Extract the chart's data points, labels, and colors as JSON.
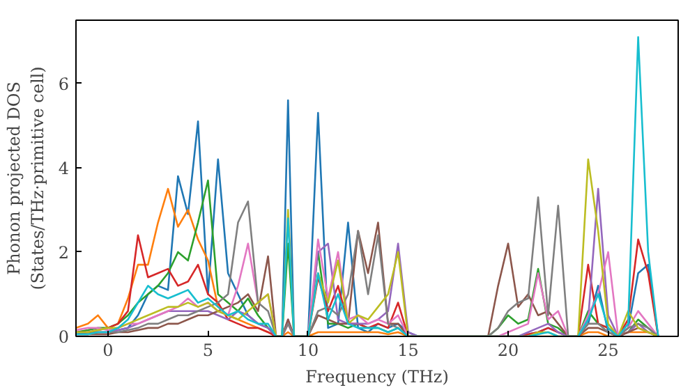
{
  "chart_data": {
    "type": "line",
    "xlabel": "Frequency (THz)",
    "ylabel": "Phonon projected DOS\n(States/THz·primitive cell)",
    "xlim": [
      -1.6,
      28.5
    ],
    "ylim": [
      0,
      7.5
    ],
    "xticks": [
      0,
      5,
      10,
      15,
      20,
      25
    ],
    "yticks": [
      0,
      2,
      4,
      6
    ],
    "grid": false,
    "marker": "none",
    "line_style": "solid",
    "x": [
      -1.6,
      -1.0,
      -0.5,
      0,
      0.5,
      1.0,
      1.5,
      2.0,
      2.5,
      3.0,
      3.5,
      4.0,
      4.5,
      5.0,
      5.5,
      6.0,
      6.5,
      7.0,
      7.5,
      8.0,
      8.4,
      8.7,
      9.0,
      9.3,
      9.6,
      10.0,
      10.5,
      11.0,
      11.5,
      12.0,
      12.5,
      13.0,
      13.5,
      14.0,
      14.5,
      15.0,
      15.5,
      19.0,
      19.5,
      20.0,
      20.5,
      21.0,
      21.5,
      22.0,
      22.5,
      23.0,
      23.5,
      24.0,
      24.5,
      25.0,
      25.5,
      26.0,
      26.5,
      27.0,
      27.5
    ],
    "series": [
      {
        "color": "#1f77b4",
        "values": [
          0.05,
          0.1,
          0.1,
          0.1,
          0.15,
          0.2,
          0.5,
          1.0,
          1.2,
          1.1,
          3.8,
          2.9,
          5.1,
          1.0,
          4.2,
          1.5,
          1.0,
          0.5,
          0.3,
          0.2,
          0,
          0,
          5.6,
          0,
          0,
          0,
          5.3,
          0.2,
          0.3,
          2.7,
          0.2,
          0.1,
          0.3,
          0.2,
          0.3,
          0.1,
          0,
          0,
          0,
          0,
          0,
          0.05,
          0.1,
          0.2,
          0.1,
          0,
          0,
          0.3,
          1.2,
          0.1,
          0,
          0.2,
          1.5,
          1.7,
          0
        ]
      },
      {
        "color": "#ff7f0e",
        "values": [
          0.2,
          0.3,
          0.5,
          0.2,
          0.3,
          0.9,
          1.7,
          1.7,
          2.7,
          3.5,
          2.6,
          3.0,
          2.3,
          1.8,
          0.7,
          0.5,
          0.4,
          0.3,
          0.2,
          0.1,
          0,
          0,
          0.1,
          0,
          0,
          0,
          0.1,
          0.1,
          0.1,
          0.1,
          0.1,
          0.1,
          0.1,
          0.05,
          0.1,
          0,
          0,
          0,
          0,
          0,
          0,
          0,
          0,
          null,
          0,
          0,
          0,
          0.1,
          0.1,
          0,
          0,
          0.1,
          0.1,
          0.1,
          0
        ]
      },
      {
        "color": "#2ca02c",
        "values": [
          0.1,
          0.15,
          0.2,
          0.2,
          0.3,
          0.5,
          0.8,
          1.0,
          1.2,
          1.5,
          2.0,
          1.8,
          2.7,
          3.7,
          1.0,
          0.8,
          0.6,
          0.9,
          0.5,
          0.2,
          0,
          0,
          2.2,
          0,
          0,
          0,
          2.0,
          0.3,
          0.3,
          0.2,
          0.3,
          0.2,
          0.2,
          0.1,
          0.2,
          0,
          0,
          0,
          0.2,
          0.5,
          0.3,
          0.4,
          1.6,
          0.3,
          0.2,
          0,
          0,
          0.6,
          0.3,
          0.2,
          0,
          0.1,
          0.4,
          0.2,
          0
        ]
      },
      {
        "color": "#d62728",
        "values": [
          0.1,
          0.1,
          0.15,
          0.2,
          0.3,
          0.6,
          2.4,
          1.4,
          1.5,
          1.6,
          1.2,
          1.3,
          1.7,
          1.0,
          0.8,
          0.4,
          0.3,
          0.2,
          0.2,
          0.1,
          0,
          0,
          0.3,
          0,
          0,
          0,
          1.4,
          0.6,
          1.2,
          0.3,
          0.3,
          0.2,
          0.3,
          0.2,
          0.8,
          0,
          0,
          0,
          0,
          0,
          0,
          0.05,
          0.1,
          0.2,
          0.1,
          0,
          0,
          1.7,
          0.3,
          0.2,
          0,
          0.4,
          2.3,
          1.5,
          0
        ]
      },
      {
        "color": "#9467bd",
        "values": [
          0.05,
          0.05,
          0.1,
          0.1,
          0.15,
          0.2,
          0.3,
          0.4,
          0.5,
          0.6,
          0.6,
          0.6,
          0.6,
          0.6,
          0.5,
          0.4,
          0.6,
          0.5,
          0.3,
          0.2,
          0,
          0,
          0.4,
          0,
          0,
          0,
          2.0,
          2.2,
          0.4,
          0.3,
          0.3,
          0.3,
          0.4,
          0.6,
          2.2,
          0.1,
          0,
          0,
          0,
          0,
          0,
          0.1,
          0.2,
          0.3,
          0.1,
          0,
          0,
          0.4,
          3.5,
          0.5,
          0,
          0.1,
          0.3,
          0.1,
          0
        ]
      },
      {
        "color": "#8c564b",
        "values": [
          0.05,
          0.05,
          0.05,
          0.05,
          0.1,
          0.1,
          0.15,
          0.2,
          0.2,
          0.3,
          0.3,
          0.4,
          0.5,
          0.5,
          0.6,
          0.7,
          0.8,
          1.0,
          0.6,
          1.9,
          0,
          0,
          0.4,
          0,
          0,
          0,
          0.5,
          0.4,
          0.3,
          0.3,
          2.5,
          1.5,
          2.7,
          0.3,
          0.3,
          0,
          0,
          0,
          1.2,
          2.2,
          0.7,
          1.0,
          0.5,
          0.6,
          0.3,
          0,
          0,
          0.2,
          0.2,
          0.1,
          0,
          0.1,
          0.2,
          0.1,
          0
        ]
      },
      {
        "color": "#e377c2",
        "values": [
          0.15,
          0.2,
          0.2,
          0.15,
          0.2,
          0.3,
          0.3,
          0.4,
          0.5,
          0.6,
          0.7,
          0.9,
          0.7,
          0.8,
          0.6,
          0.5,
          1.2,
          2.2,
          0.8,
          1.0,
          0,
          0,
          0.3,
          0,
          0,
          0,
          2.3,
          0.9,
          2.0,
          0.4,
          0.5,
          0.3,
          0.4,
          0.3,
          0.5,
          0,
          0,
          0,
          0,
          0.1,
          0.2,
          0.3,
          1.5,
          0.4,
          0.6,
          0,
          0,
          0.5,
          1.0,
          2.0,
          0,
          0.2,
          0.6,
          0.3,
          0
        ]
      },
      {
        "color": "#7f7f7f",
        "values": [
          0.05,
          0.05,
          0.1,
          0.1,
          0.1,
          0.15,
          0.2,
          0.3,
          0.3,
          0.4,
          0.5,
          0.5,
          0.6,
          0.7,
          0.8,
          1.0,
          2.7,
          3.2,
          0.8,
          0.6,
          0,
          0,
          0.3,
          0,
          0,
          0,
          0.6,
          0.7,
          0.5,
          1.0,
          2.5,
          1.0,
          2.4,
          0.3,
          0.2,
          0,
          0,
          0,
          0.2,
          0.6,
          0.8,
          0.9,
          3.3,
          0.5,
          3.1,
          0,
          0,
          0.3,
          0.3,
          0.1,
          0,
          0.2,
          0.3,
          0.2,
          0
        ]
      },
      {
        "color": "#bcbd22",
        "values": [
          0.1,
          0.1,
          0.15,
          0.2,
          0.2,
          0.3,
          0.4,
          0.5,
          0.6,
          0.7,
          0.7,
          0.8,
          0.7,
          0.8,
          0.6,
          0.5,
          0.4,
          0.6,
          0.8,
          1.0,
          0,
          0,
          3.0,
          0,
          0,
          0,
          1.5,
          0.8,
          1.8,
          0.3,
          0.5,
          0.4,
          0.7,
          1.0,
          2.0,
          0,
          0,
          0,
          0,
          0,
          0,
          0,
          0.1,
          0.1,
          0,
          0,
          0,
          4.2,
          2.5,
          0.3,
          0,
          0.6,
          0.2,
          0.1,
          0
        ]
      },
      {
        "color": "#17becf",
        "values": [
          0.05,
          0.05,
          0.1,
          0.1,
          0.2,
          0.4,
          0.8,
          1.2,
          1.0,
          0.9,
          1.0,
          1.1,
          0.8,
          0.9,
          0.7,
          0.5,
          0.6,
          0.4,
          0.3,
          0.3,
          0,
          0,
          2.8,
          0,
          0,
          0,
          1.5,
          0.4,
          1.0,
          0.3,
          0.2,
          0.2,
          0.2,
          0.1,
          0.2,
          0,
          null,
          null,
          null,
          null,
          null,
          0,
          0.05,
          0.1,
          0,
          null,
          0,
          0.4,
          1.0,
          0.2,
          0,
          0.3,
          7.1,
          2.0,
          0
        ]
      }
    ]
  }
}
